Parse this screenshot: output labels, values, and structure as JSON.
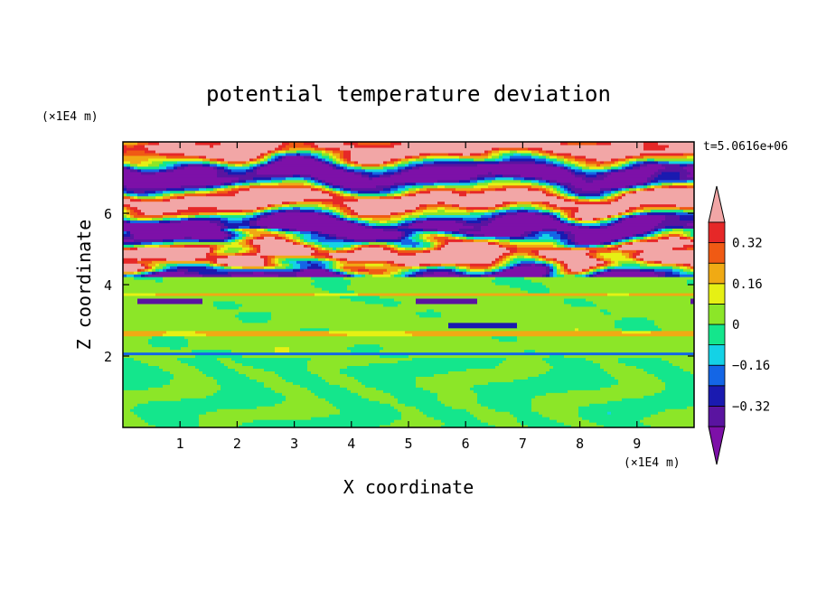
{
  "chart_data": {
    "type": "heatmap",
    "title": "potential temperature deviation",
    "xlabel": "X coordinate",
    "ylabel": "Z coordinate",
    "x_unit": "(×1E4 m)",
    "y_unit": "(×1E4 m)",
    "time_label": "t=5.0616e+06",
    "xlim": [
      0,
      10
    ],
    "ylim": [
      0,
      8
    ],
    "x_ticks": [
      "1",
      "2",
      "3",
      "4",
      "5",
      "6",
      "7",
      "8",
      "9"
    ],
    "y_ticks": [
      "2",
      "4",
      "6"
    ],
    "grid": false,
    "colorbar": {
      "placement": "right",
      "levels": [
        -0.4,
        -0.32,
        -0.24,
        -0.16,
        -0.08,
        0,
        0.08,
        0.16,
        0.24,
        0.32,
        0.4
      ],
      "labels": [
        "0.32",
        "0.16",
        "0",
        "−0.16",
        "−0.32"
      ],
      "colors": {
        "below": "#7d10a8",
        "bands": [
          "#5a14a0",
          "#1a1ab0",
          "#1466e6",
          "#14d2e6",
          "#14e68c",
          "#8ce628",
          "#e6f014",
          "#f0aa14",
          "#f05a14",
          "#e62828"
        ],
        "above": "#f2a6a6"
      }
    },
    "layers": [
      {
        "z_range": [
          0.0,
          2.0
        ],
        "description_value_range": [
          -0.08,
          0.08
        ]
      },
      {
        "z_range": [
          2.0,
          4.2
        ],
        "description_value_range": [
          -0.08,
          0.16
        ]
      },
      {
        "z_range": [
          4.2,
          5.6
        ],
        "description_value_range": [
          -0.4,
          0.4
        ]
      },
      {
        "z_range": [
          5.6,
          8.0
        ],
        "description_value_range": [
          -0.4,
          0.4
        ]
      }
    ]
  }
}
